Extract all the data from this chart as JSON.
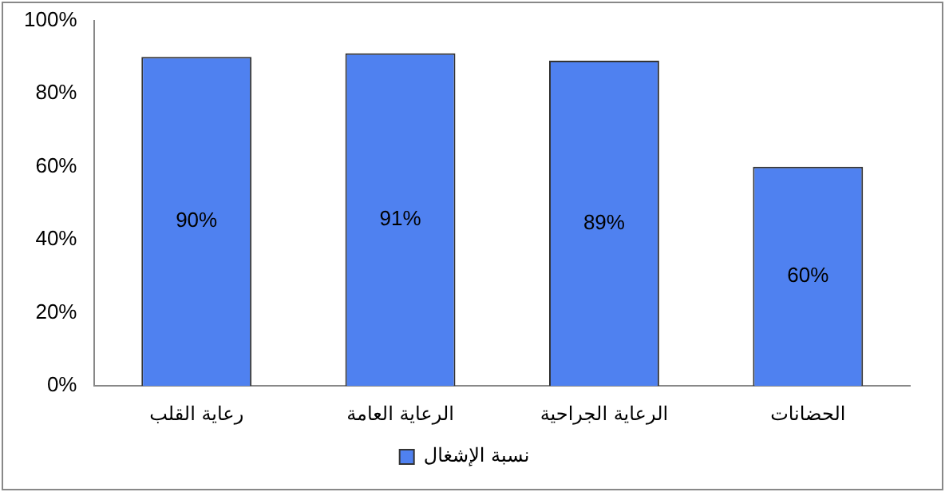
{
  "chart_data": {
    "type": "bar",
    "categories": [
      "رعاية القلب",
      "الرعاية العامة",
      "الرعاية الجراحية",
      "الحضانات"
    ],
    "series": [
      {
        "name": "نسبة الإشغال",
        "color": "#4f81f0",
        "values": [
          90,
          91,
          89,
          60
        ],
        "value_labels": [
          "90%",
          "91%",
          "89%",
          "60%"
        ]
      }
    ],
    "ylim": [
      0,
      100
    ],
    "yticks": [
      {
        "value": 0,
        "label": "0%"
      },
      {
        "value": 20,
        "label": "20%"
      },
      {
        "value": 40,
        "label": "40%"
      },
      {
        "value": 60,
        "label": "60%"
      },
      {
        "value": 80,
        "label": "80%"
      },
      {
        "value": 100,
        "label": "100%"
      }
    ],
    "grid": false,
    "legend": "bottom"
  }
}
